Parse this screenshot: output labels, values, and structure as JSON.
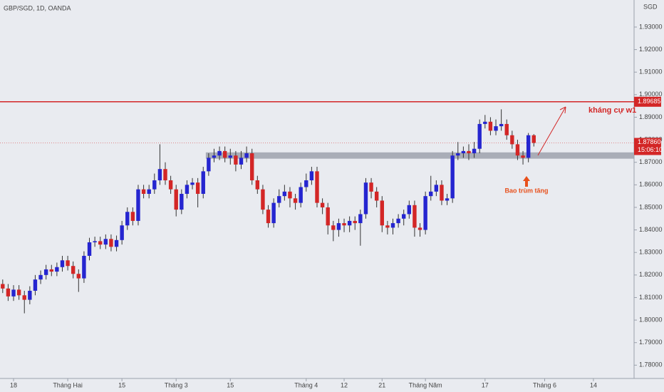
{
  "chart_data": {
    "type": "candlestick",
    "title": "GBP/SGD, 1D, OANDA",
    "currency": "SGD",
    "up_color": "#2525d0",
    "down_color": "#d32626",
    "open": [
      1.816,
      1.814,
      1.8105,
      1.8135,
      1.811,
      1.809,
      1.813,
      1.818,
      1.82,
      1.8225,
      1.8215,
      1.8235,
      1.8265,
      1.824,
      1.8205,
      1.8185,
      1.8285,
      1.8345,
      1.835,
      1.8335,
      1.836,
      1.8325,
      1.8355,
      1.842,
      1.848,
      1.844,
      1.858,
      1.856,
      1.858,
      1.862,
      1.867,
      1.862,
      1.858,
      1.849,
      1.856,
      1.86,
      1.861,
      1.856,
      1.866,
      1.872,
      1.873,
      1.875,
      1.872,
      1.873,
      1.869,
      1.872,
      1.874,
      1.862,
      1.858,
      1.849,
      1.843,
      1.852,
      1.855,
      1.857,
      1.854,
      1.852,
      1.859,
      1.862,
      1.866,
      1.852,
      1.85,
      1.842,
      1.84,
      1.843,
      1.842,
      1.844,
      1.843,
      1.847,
      1.861,
      1.857,
      1.853,
      1.842,
      1.841,
      1.843,
      1.845,
      1.847,
      1.851,
      1.841,
      1.84,
      1.855,
      1.857,
      1.86,
      1.853,
      1.854,
      1.873,
      1.874,
      1.875,
      1.874,
      1.876,
      1.887,
      1.888,
      1.884,
      1.886,
      1.887,
      1.882,
      1.878,
      1.873,
      1.872,
      1.882
    ],
    "high": [
      1.818,
      1.816,
      1.8155,
      1.8155,
      1.813,
      1.815,
      1.82,
      1.822,
      1.8245,
      1.8245,
      1.8255,
      1.8285,
      1.8285,
      1.826,
      1.8225,
      1.8305,
      1.8365,
      1.837,
      1.837,
      1.838,
      1.838,
      1.8375,
      1.844,
      1.85,
      1.85,
      1.86,
      1.86,
      1.86,
      1.865,
      1.878,
      1.87,
      1.864,
      1.86,
      1.858,
      1.862,
      1.863,
      1.863,
      1.868,
      1.874,
      1.876,
      1.877,
      1.877,
      1.876,
      1.875,
      1.875,
      1.877,
      1.876,
      1.864,
      1.86,
      1.851,
      1.854,
      1.858,
      1.86,
      1.859,
      1.856,
      1.861,
      1.865,
      1.868,
      1.868,
      1.854,
      1.852,
      1.844,
      1.845,
      1.845,
      1.846,
      1.846,
      1.849,
      1.863,
      1.863,
      1.859,
      1.855,
      1.844,
      1.845,
      1.847,
      1.849,
      1.853,
      1.853,
      1.843,
      1.857,
      1.864,
      1.862,
      1.862,
      1.856,
      1.875,
      1.879,
      1.877,
      1.878,
      1.879,
      1.889,
      1.891,
      1.89,
      1.889,
      1.8935,
      1.889,
      1.884,
      1.88,
      1.875,
      1.883,
      1.8825
    ],
    "low": [
      1.812,
      1.8085,
      1.8085,
      1.809,
      1.803,
      1.807,
      1.811,
      1.816,
      1.818,
      1.8195,
      1.8195,
      1.8215,
      1.822,
      1.8185,
      1.8125,
      1.8165,
      1.8265,
      1.8325,
      1.8315,
      1.8315,
      1.8305,
      1.8305,
      1.8335,
      1.84,
      1.842,
      1.842,
      1.854,
      1.854,
      1.856,
      1.86,
      1.86,
      1.856,
      1.846,
      1.847,
      1.854,
      1.858,
      1.85,
      1.854,
      1.864,
      1.87,
      1.871,
      1.87,
      1.869,
      1.866,
      1.867,
      1.87,
      1.86,
      1.856,
      1.847,
      1.841,
      1.841,
      1.85,
      1.853,
      1.85,
      1.849,
      1.85,
      1.857,
      1.86,
      1.85,
      1.847,
      1.838,
      1.835,
      1.837,
      1.839,
      1.839,
      1.84,
      1.833,
      1.845,
      1.854,
      1.85,
      1.839,
      1.838,
      1.838,
      1.841,
      1.842,
      1.845,
      1.837,
      1.837,
      1.838,
      1.853,
      1.855,
      1.851,
      1.851,
      1.852,
      1.871,
      1.872,
      1.871,
      1.872,
      1.874,
      1.885,
      1.882,
      1.882,
      1.884,
      1.88,
      1.876,
      1.871,
      1.869,
      1.87,
      1.877
    ],
    "close": [
      1.814,
      1.8105,
      1.8135,
      1.811,
      1.809,
      1.813,
      1.818,
      1.82,
      1.8225,
      1.8215,
      1.8235,
      1.8265,
      1.824,
      1.8205,
      1.8185,
      1.8285,
      1.8345,
      1.835,
      1.8335,
      1.836,
      1.8325,
      1.8355,
      1.842,
      1.848,
      1.844,
      1.858,
      1.856,
      1.858,
      1.862,
      1.867,
      1.862,
      1.858,
      1.849,
      1.856,
      1.86,
      1.861,
      1.856,
      1.866,
      1.872,
      1.873,
      1.875,
      1.872,
      1.873,
      1.869,
      1.872,
      1.874,
      1.862,
      1.858,
      1.849,
      1.843,
      1.852,
      1.855,
      1.857,
      1.854,
      1.852,
      1.859,
      1.862,
      1.866,
      1.852,
      1.85,
      1.842,
      1.84,
      1.843,
      1.842,
      1.844,
      1.843,
      1.847,
      1.861,
      1.857,
      1.853,
      1.842,
      1.841,
      1.843,
      1.845,
      1.847,
      1.851,
      1.841,
      1.84,
      1.855,
      1.857,
      1.86,
      1.853,
      1.854,
      1.873,
      1.874,
      1.875,
      1.874,
      1.876,
      1.887,
      1.888,
      1.884,
      1.886,
      1.887,
      1.882,
      1.878,
      1.873,
      1.872,
      1.882,
      1.8786
    ],
    "xlim": [
      -0.5,
      116.5
    ],
    "xticks": [
      {
        "value": 2,
        "label": "18"
      },
      {
        "value": 12,
        "label": "Tháng Hai"
      },
      {
        "value": 22,
        "label": "15"
      },
      {
        "value": 32,
        "label": "Tháng 3"
      },
      {
        "value": 42,
        "label": "15"
      },
      {
        "value": 56,
        "label": "Tháng 4"
      },
      {
        "value": 63,
        "label": "12"
      },
      {
        "value": 70,
        "label": "21"
      },
      {
        "value": 78,
        "label": "Tháng Năm"
      },
      {
        "value": 89,
        "label": "17"
      },
      {
        "value": 100,
        "label": "Tháng 6"
      },
      {
        "value": 109,
        "label": "14"
      }
    ],
    "ylim": [
      1.7741,
      1.942
    ],
    "yticks": [
      {
        "value": 1.78,
        "label": "1.78000"
      },
      {
        "value": 1.79,
        "label": "1.79000"
      },
      {
        "value": 1.8,
        "label": "1.80000"
      },
      {
        "value": 1.81,
        "label": "1.81000"
      },
      {
        "value": 1.82,
        "label": "1.82000"
      },
      {
        "value": 1.83,
        "label": "1.83000"
      },
      {
        "value": 1.84,
        "label": "1.84000"
      },
      {
        "value": 1.85,
        "label": "1.85000"
      },
      {
        "value": 1.86,
        "label": "1.86000"
      },
      {
        "value": 1.87,
        "label": "1.87000"
      },
      {
        "value": 1.88,
        "label": "1.88000"
      },
      {
        "value": 1.89,
        "label": "1.89000"
      },
      {
        "value": 1.9,
        "label": "1.90000"
      },
      {
        "value": 1.91,
        "label": "1.91000"
      },
      {
        "value": 1.92,
        "label": "1.92000"
      },
      {
        "value": 1.93,
        "label": "1.93000"
      }
    ],
    "resistance": {
      "value": 1.89685,
      "label": "1.89685"
    },
    "last_price": {
      "value": 1.8786,
      "label": "1.87860"
    },
    "countdown": "15:06:10",
    "zone": [
      1.8716,
      1.8744
    ],
    "annotations": {
      "resistance_text": "kháng cự w1",
      "pattern_text": "Bao trùm tăng"
    }
  }
}
